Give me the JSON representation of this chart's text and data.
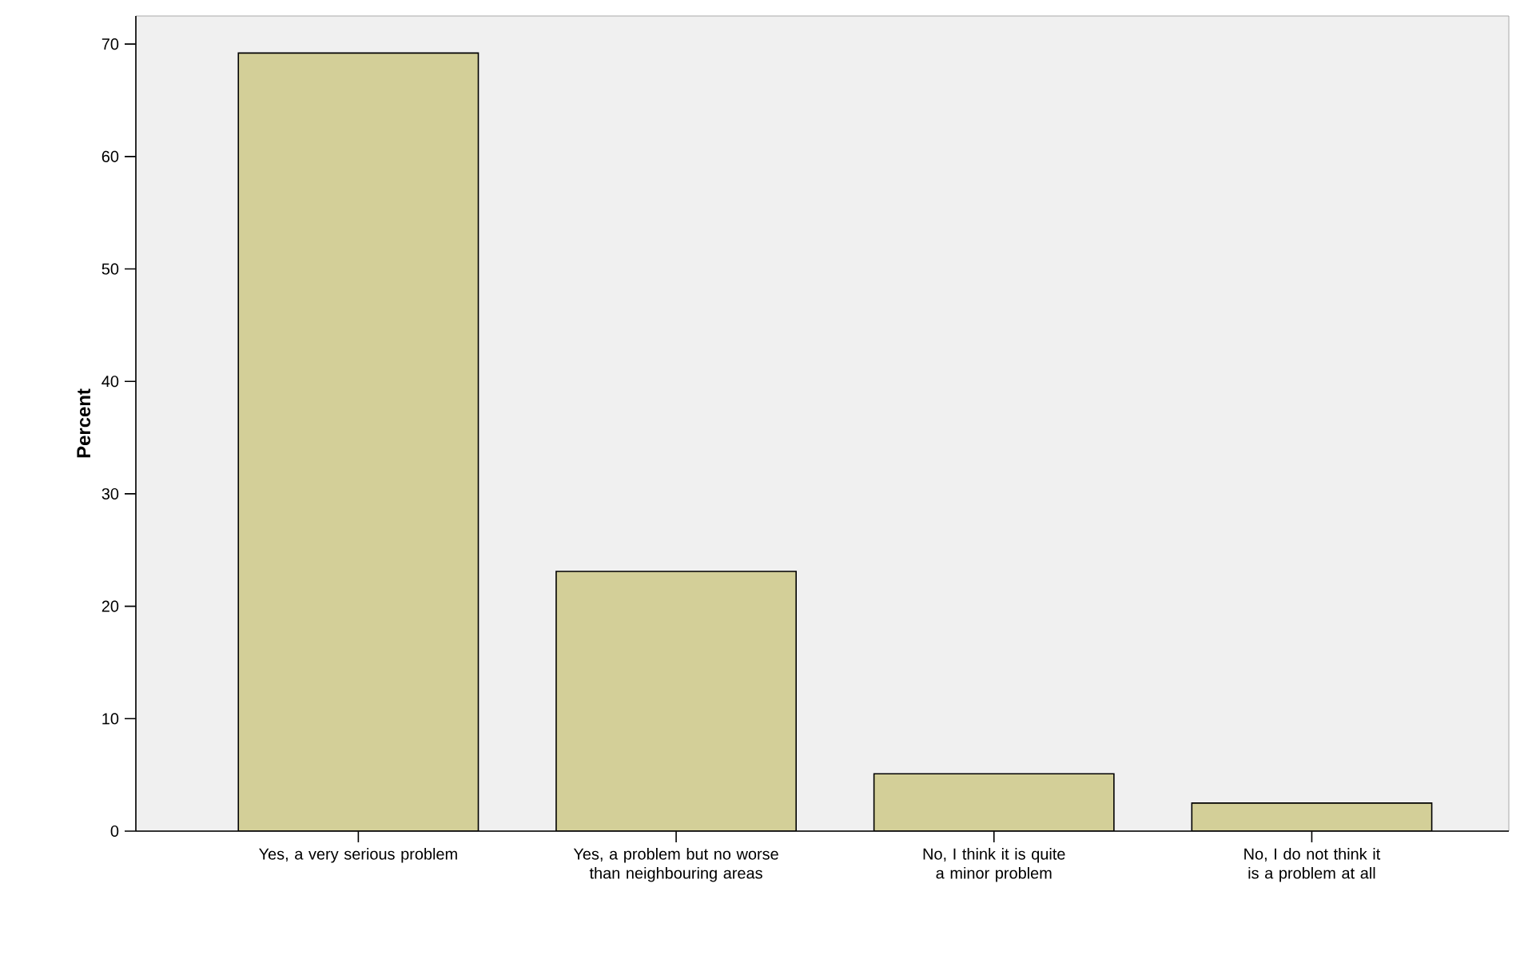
{
  "chart_data": {
    "type": "bar",
    "ylabel": "Percent",
    "categories": [
      "Yes, a very serious problem",
      "Yes, a problem but no worse than neighbouring areas",
      "No, I think it is quite a minor problem",
      "No, I do not think it is a problem at all"
    ],
    "values": [
      69.2,
      23.1,
      5.1,
      2.5
    ],
    "color": "#d3cf98",
    "ylim": [
      0,
      72.5
    ],
    "yticks": [
      0,
      10,
      20,
      30,
      40,
      50,
      60,
      70
    ],
    "grid": false
  }
}
